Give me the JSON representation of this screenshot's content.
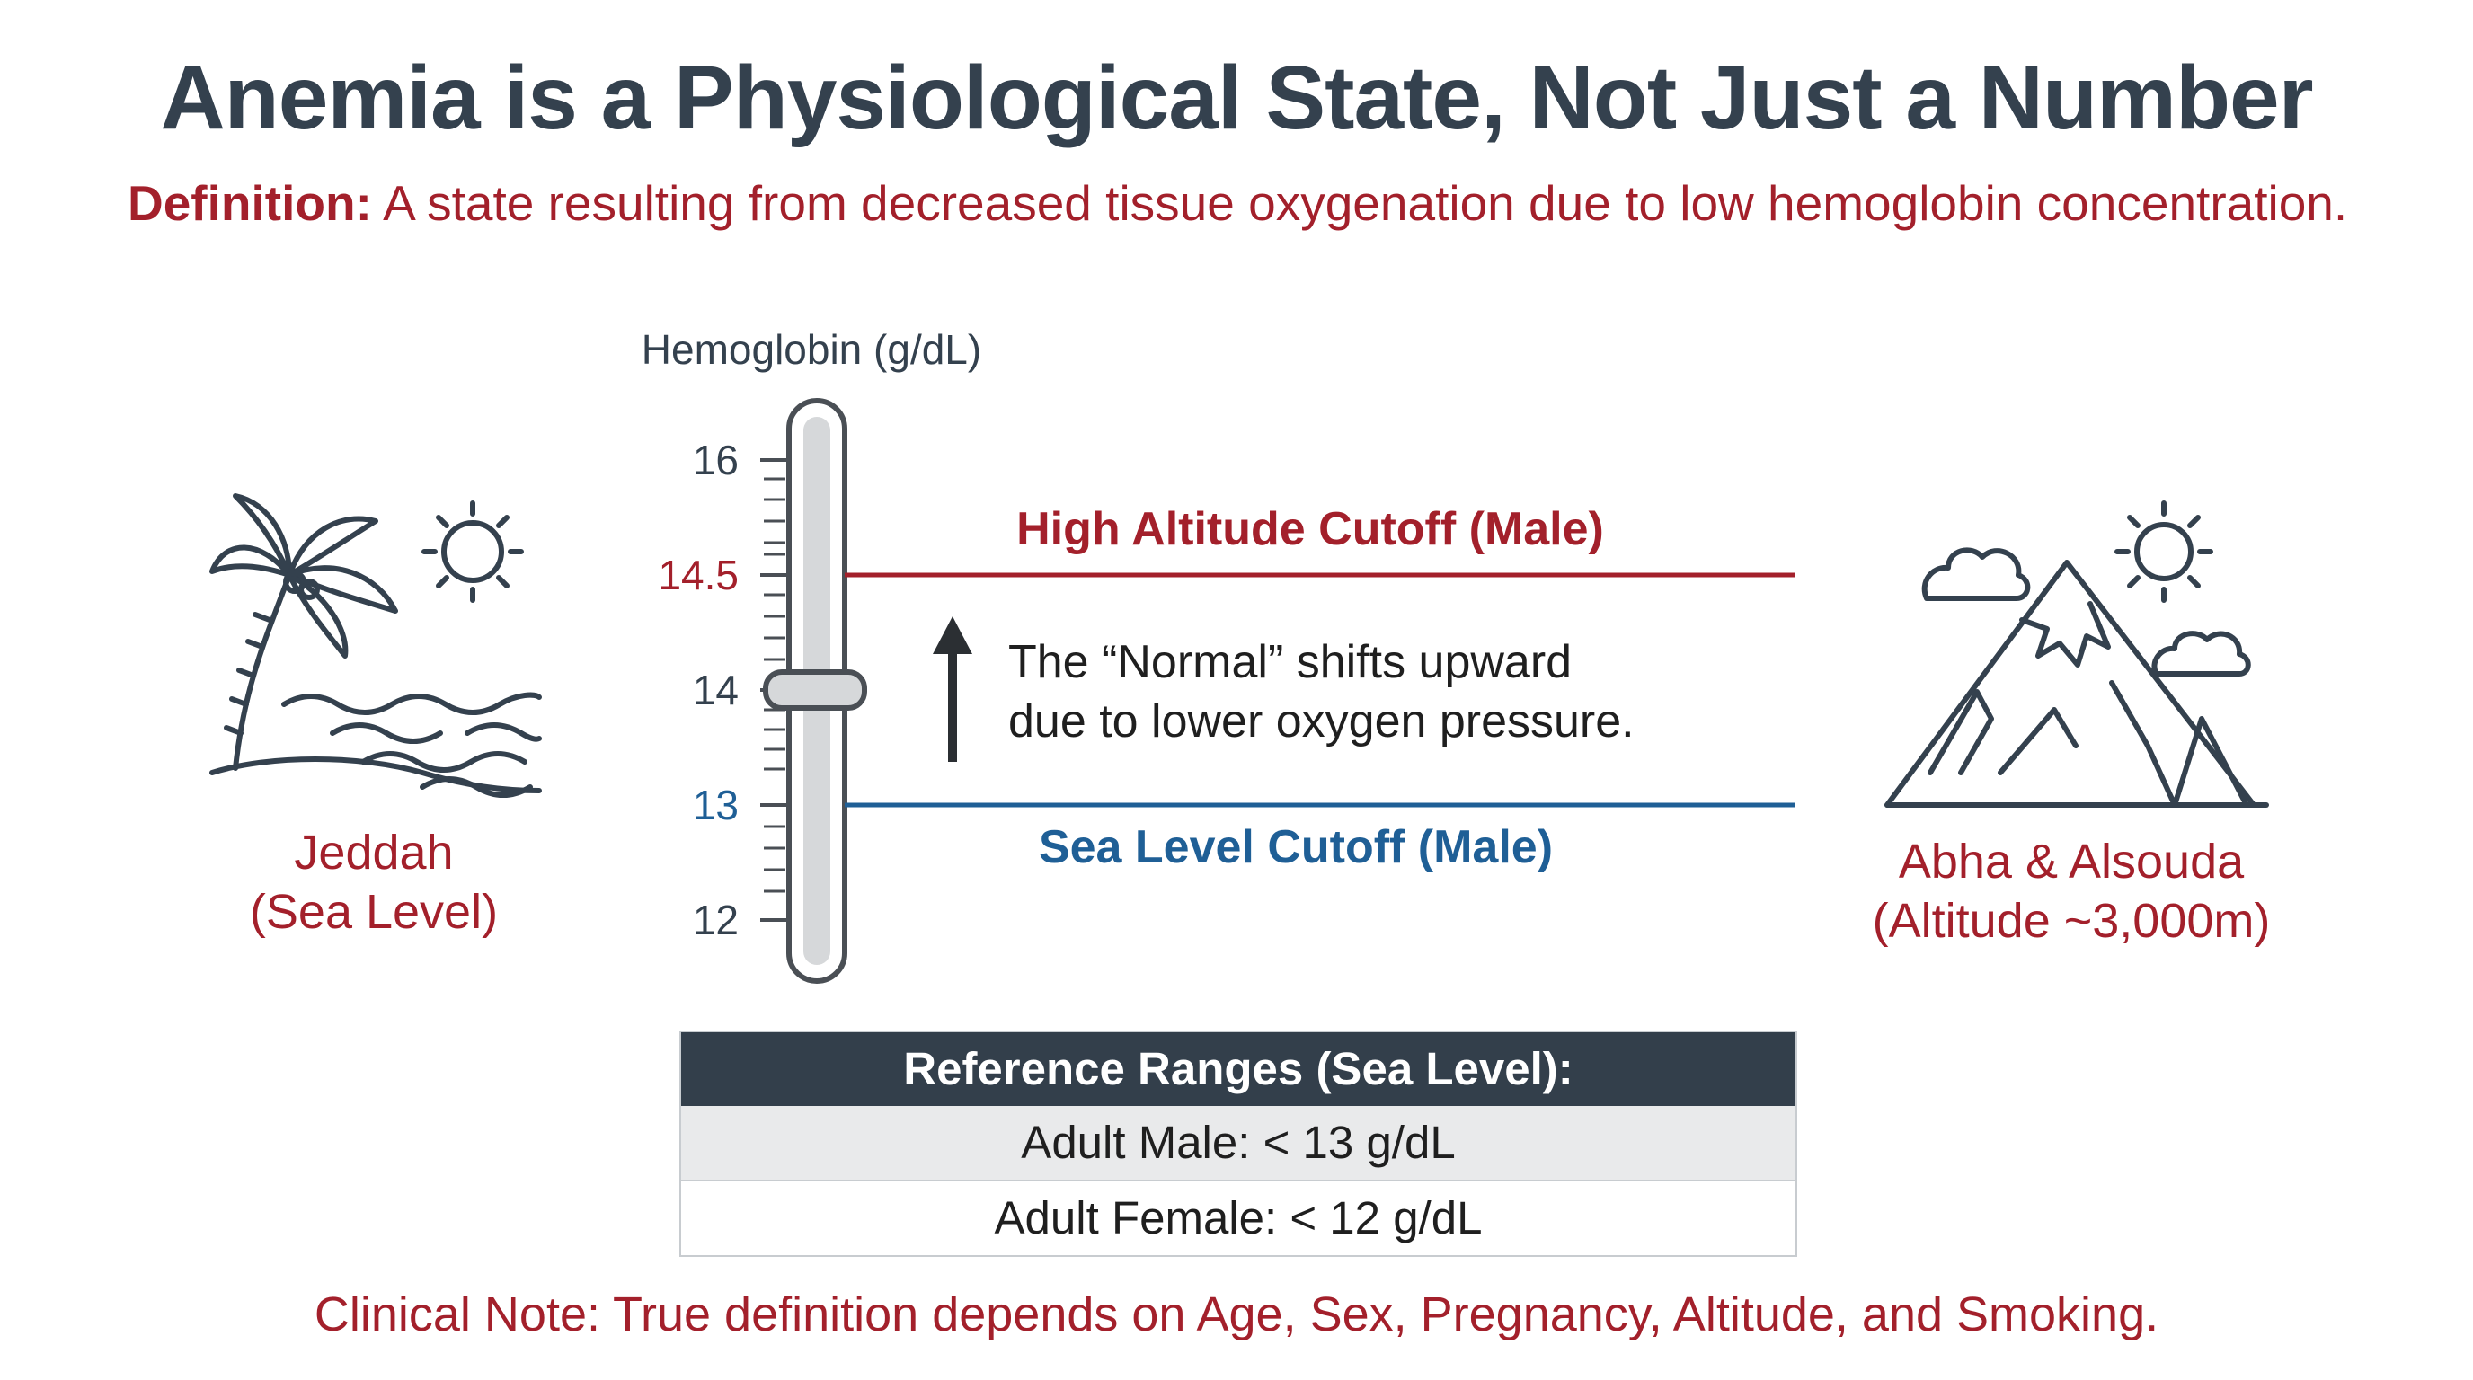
{
  "title": "Anemia is a Physiological State, Not Just a Number",
  "definition": {
    "label": "Definition:",
    "text": "A state resulting from decreased tissue oxygenation due to low hemoglobin concentration."
  },
  "scale": {
    "axis_label": "Hemoglobin (g/dL)",
    "ticks": [
      "16",
      "14.5",
      "14",
      "13",
      "12"
    ],
    "indicator_value": 14
  },
  "cutoffs": {
    "high": {
      "label": "High Altitude Cutoff (Male)",
      "value": 14.5,
      "color": "#a3202b"
    },
    "sea": {
      "label": "Sea Level Cutoff (Male)",
      "value": 13,
      "color": "#1f5f96"
    }
  },
  "shift_note": {
    "line1": "The “Normal” shifts upward",
    "line2": "due to lower oxygen pressure."
  },
  "locations": {
    "left": {
      "line1": "Jeddah",
      "line2": "(Sea Level)",
      "icon": "palm-beach-icon"
    },
    "right": {
      "line1": "Abha & Alsouda",
      "line2": "(Altitude ~3,000m)",
      "icon": "mountain-icon"
    }
  },
  "reference_table": {
    "header": "Reference Ranges (Sea Level):",
    "rows": [
      "Adult Male: < 13 g/dL",
      "Adult Female: < 12 g/dL"
    ]
  },
  "clinical_note": "Clinical Note: True definition depends on Age, Sex, Pregnancy, Altitude, and Smoking.",
  "colors": {
    "title": "#34414e",
    "accent_red": "#a3202b",
    "accent_blue": "#1f5f96",
    "table_header": "#333f4b"
  }
}
